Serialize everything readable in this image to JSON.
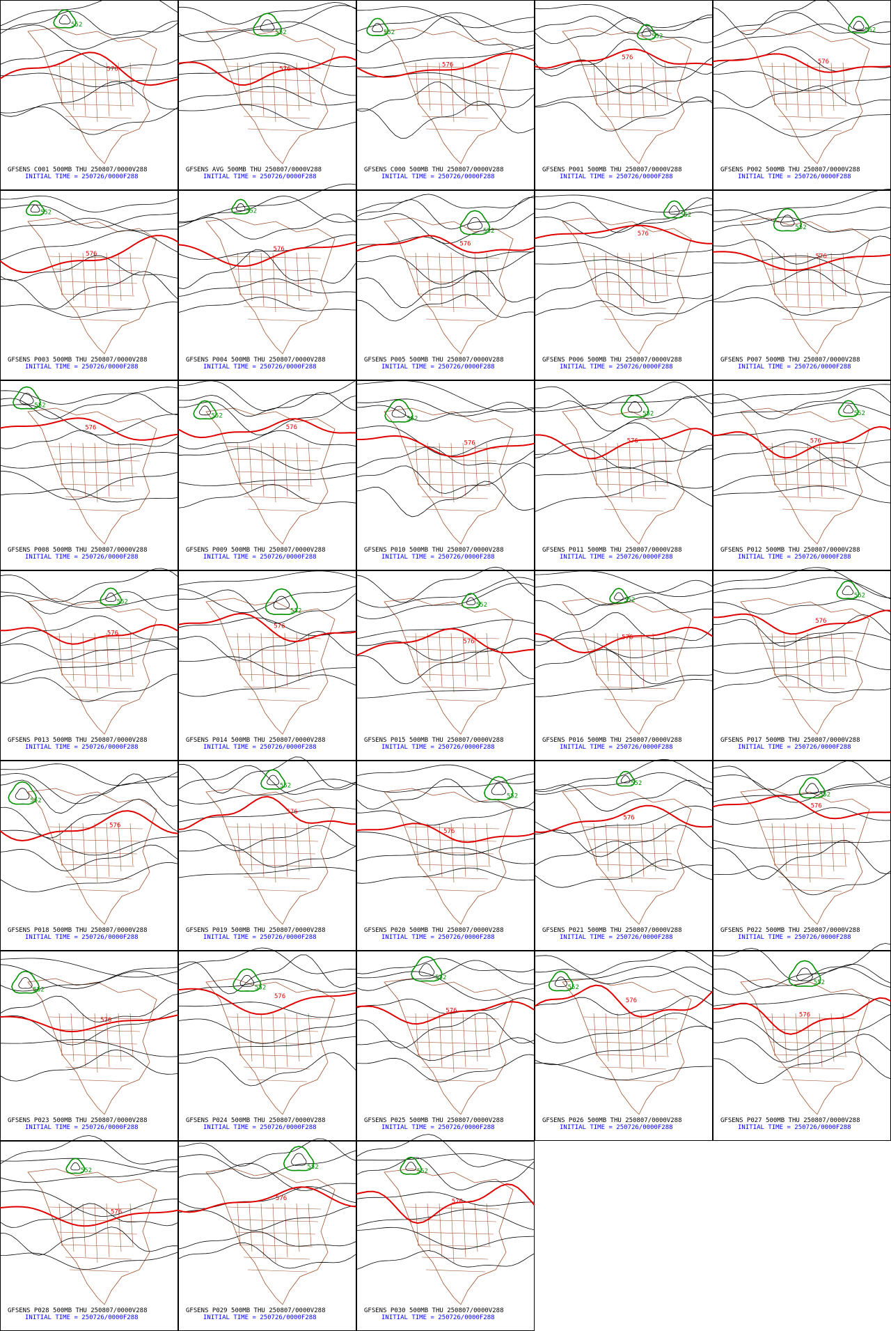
{
  "panels": [
    {
      "caption": "GFSENS C001 500MB THU 250807/0000V288",
      "initial": "INITIAL TIME = 250726/0000F288",
      "labels": [
        "576",
        "552"
      ]
    },
    {
      "caption": "GFSENS AVG 500MB THU 250807/0000V288",
      "initial": "INITIAL TIME = 250726/0000F288",
      "labels": [
        "576",
        "552"
      ]
    },
    {
      "caption": "GFSENS C000 500MB THU 250807/0000V288",
      "initial": "INITIAL TIME = 250726/0000F288",
      "labels": [
        "576",
        "552"
      ]
    },
    {
      "caption": "GFSENS P001 500MB THU 250807/0000V288",
      "initial": "INITIAL TIME = 250726/0000F288",
      "labels": [
        "576",
        "552"
      ]
    },
    {
      "caption": "GFSENS P002 500MB THU 250807/0000V288",
      "initial": "INITIAL TIME = 250726/0000F288",
      "labels": [
        "576",
        "552"
      ]
    },
    {
      "caption": "GFSENS P003 500MB THU 250807/0000V288",
      "initial": "INITIAL TIME = 250726/0000F288",
      "labels": [
        "576",
        "552"
      ]
    },
    {
      "caption": "GFSENS P004 500MB THU 250807/0000V288",
      "initial": "INITIAL TIME = 250726/0000F288",
      "labels": [
        "576",
        "552"
      ]
    },
    {
      "caption": "GFSENS P005 500MB THU 250807/0000V288",
      "initial": "INITIAL TIME = 250726/0000F288",
      "labels": [
        "576",
        "552"
      ]
    },
    {
      "caption": "GFSENS P006 500MB THU 250807/0000V288",
      "initial": "INITIAL TIME = 250726/0000F288",
      "labels": [
        "576",
        "552"
      ]
    },
    {
      "caption": "GFSENS P007 500MB THU 250807/0000V288",
      "initial": "INITIAL TIME = 250726/0000F288",
      "labels": [
        "576",
        "552"
      ]
    },
    {
      "caption": "GFSENS P008 500MB THU 250807/0000V288",
      "initial": "INITIAL TIME = 250726/0000F288",
      "labels": [
        "576",
        "552"
      ]
    },
    {
      "caption": "GFSENS P009 500MB THU 250807/0000V288",
      "initial": "INITIAL TIME = 250726/0000F288",
      "labels": [
        "576",
        "552"
      ]
    },
    {
      "caption": "GFSENS P010 500MB THU 250807/0000V288",
      "initial": "INITIAL TIME = 250726/0000F288",
      "labels": [
        "576",
        "552"
      ]
    },
    {
      "caption": "GFSENS P011 500MB THU 250807/0000V288",
      "initial": "INITIAL TIME = 250726/0000F288",
      "labels": [
        "576",
        "552"
      ]
    },
    {
      "caption": "GFSENS P012 500MB THU 250807/0000V288",
      "initial": "INITIAL TIME = 250726/0000F288",
      "labels": [
        "576",
        "552"
      ]
    },
    {
      "caption": "GFSENS P013 500MB THU 250807/0000V288",
      "initial": "INITIAL TIME = 250726/0000F288",
      "labels": [
        "576",
        "552"
      ]
    },
    {
      "caption": "GFSENS P014 500MB THU 250807/0000V288",
      "initial": "INITIAL TIME = 250726/0000F288",
      "labels": [
        "576",
        "552"
      ]
    },
    {
      "caption": "GFSENS P015 500MB THU 250807/0000V288",
      "initial": "INITIAL TIME = 250726/0000F288",
      "labels": [
        "576",
        "552"
      ]
    },
    {
      "caption": "GFSENS P016 500MB THU 250807/0000V288",
      "initial": "INITIAL TIME = 250726/0000F288",
      "labels": [
        "576",
        "552"
      ]
    },
    {
      "caption": "GFSENS P017 500MB THU 250807/0000V288",
      "initial": "INITIAL TIME = 250726/0000F288",
      "labels": [
        "576",
        "552"
      ]
    },
    {
      "caption": "GFSENS P018 500MB THU 250807/0000V288",
      "initial": "INITIAL TIME = 250726/0000F288",
      "labels": [
        "576",
        "552"
      ]
    },
    {
      "caption": "GFSENS P019 500MB THU 250807/0000V288",
      "initial": "INITIAL TIME = 250726/0000F288",
      "labels": [
        "576",
        "552"
      ]
    },
    {
      "caption": "GFSENS P020 500MB THU 250807/0000V288",
      "initial": "INITIAL TIME = 250726/0000F288",
      "labels": [
        "576",
        "552"
      ]
    },
    {
      "caption": "GFSENS P021 500MB THU 250807/0000V288",
      "initial": "INITIAL TIME = 250726/0000F288",
      "labels": [
        "576",
        "552"
      ]
    },
    {
      "caption": "GFSENS P022 500MB THU 250807/0000V288",
      "initial": "INITIAL TIME = 250726/0000F288",
      "labels": [
        "576",
        "552"
      ]
    },
    {
      "caption": "GFSENS P023 500MB THU 250807/0000V288",
      "initial": "INITIAL TIME = 250726/0000F288",
      "labels": [
        "576",
        "552"
      ]
    },
    {
      "caption": "GFSENS P024 500MB THU 250807/0000V288",
      "initial": "INITIAL TIME = 250726/0000F288",
      "labels": [
        "576",
        "552"
      ]
    },
    {
      "caption": "GFSENS P025 500MB THU 250807/0000V288",
      "initial": "INITIAL TIME = 250726/0000F288",
      "labels": [
        "576",
        "552"
      ]
    },
    {
      "caption": "GFSENS P026 500MB THU 250807/0000V288",
      "initial": "INITIAL TIME = 250726/0000F288",
      "labels": [
        "576",
        "552"
      ]
    },
    {
      "caption": "GFSENS P027 500MB THU 250807/0000V288",
      "initial": "INITIAL TIME = 250726/0000F288",
      "labels": [
        "576",
        "552"
      ]
    },
    {
      "caption": "GFSENS P028 500MB THU 250807/0000V288",
      "initial": "INITIAL TIME = 250726/0000F288",
      "labels": [
        "576",
        "552"
      ]
    },
    {
      "caption": "GFSENS P029 500MB THU 250807/0000V288",
      "initial": "INITIAL TIME = 250726/0000F288",
      "labels": [
        "576",
        "552"
      ]
    },
    {
      "caption": "GFSENS P030 500MB THU 250807/0000V288",
      "initial": "INITIAL TIME = 250726/0000F288",
      "labels": [
        "576",
        "552"
      ]
    }
  ]
}
